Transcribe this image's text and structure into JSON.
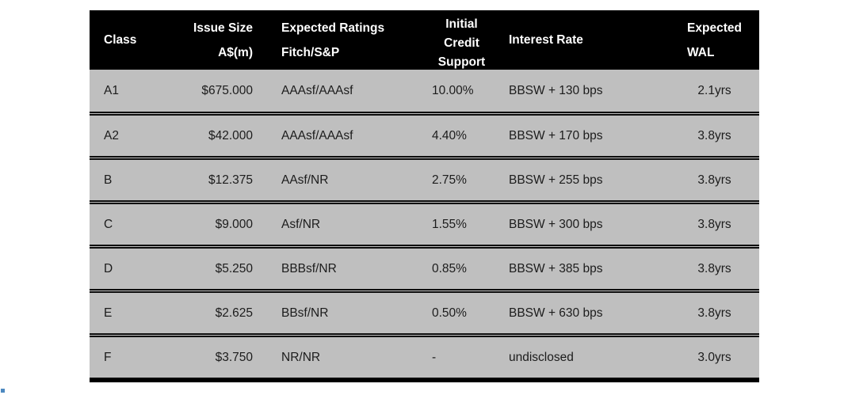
{
  "colors": {
    "header_bg": "#000000",
    "header_text": "#ffffff",
    "row_bg": "#bfbfbf",
    "row_text": "#1c1c1c",
    "border": "#000000",
    "artifact_blue": "#2e74b5"
  },
  "table": {
    "header": {
      "class": "Class",
      "issue_size": [
        "Issue Size",
        "A$(m)"
      ],
      "ratings": [
        "Expected Ratings",
        "Fitch/S&P"
      ],
      "credit_support": [
        "Initial",
        "Credit",
        "Support"
      ],
      "interest_rate": "Interest Rate",
      "wal": [
        "Expected",
        "WAL"
      ]
    },
    "rows": [
      {
        "class": "A1",
        "issue_size": "$675.000",
        "ratings": "AAAsf/AAAsf",
        "credit_support": "10.00%",
        "interest_rate": "BBSW + 130 bps",
        "wal": "2.1yrs"
      },
      {
        "class": "A2",
        "issue_size": "$42.000",
        "ratings": "AAAsf/AAAsf",
        "credit_support": "4.40%",
        "interest_rate": "BBSW + 170 bps",
        "wal": "3.8yrs"
      },
      {
        "class": "B",
        "issue_size": "$12.375",
        "ratings": "AAsf/NR",
        "credit_support": "2.75%",
        "interest_rate": "BBSW + 255 bps",
        "wal": "3.8yrs"
      },
      {
        "class": "C",
        "issue_size": "$9.000",
        "ratings": "Asf/NR",
        "credit_support": "1.55%",
        "interest_rate": "BBSW + 300 bps",
        "wal": "3.8yrs"
      },
      {
        "class": "D",
        "issue_size": "$5.250",
        "ratings": "BBBsf/NR",
        "credit_support": "0.85%",
        "interest_rate": "BBSW + 385 bps",
        "wal": "3.8yrs"
      },
      {
        "class": "E",
        "issue_size": "$2.625",
        "ratings": "BBsf/NR",
        "credit_support": "0.50%",
        "interest_rate": "BBSW + 630 bps",
        "wal": "3.8yrs"
      },
      {
        "class": "F",
        "issue_size": "$3.750",
        "ratings": "NR/NR",
        "credit_support": "-",
        "interest_rate": "undisclosed",
        "wal": "3.0yrs"
      }
    ]
  }
}
